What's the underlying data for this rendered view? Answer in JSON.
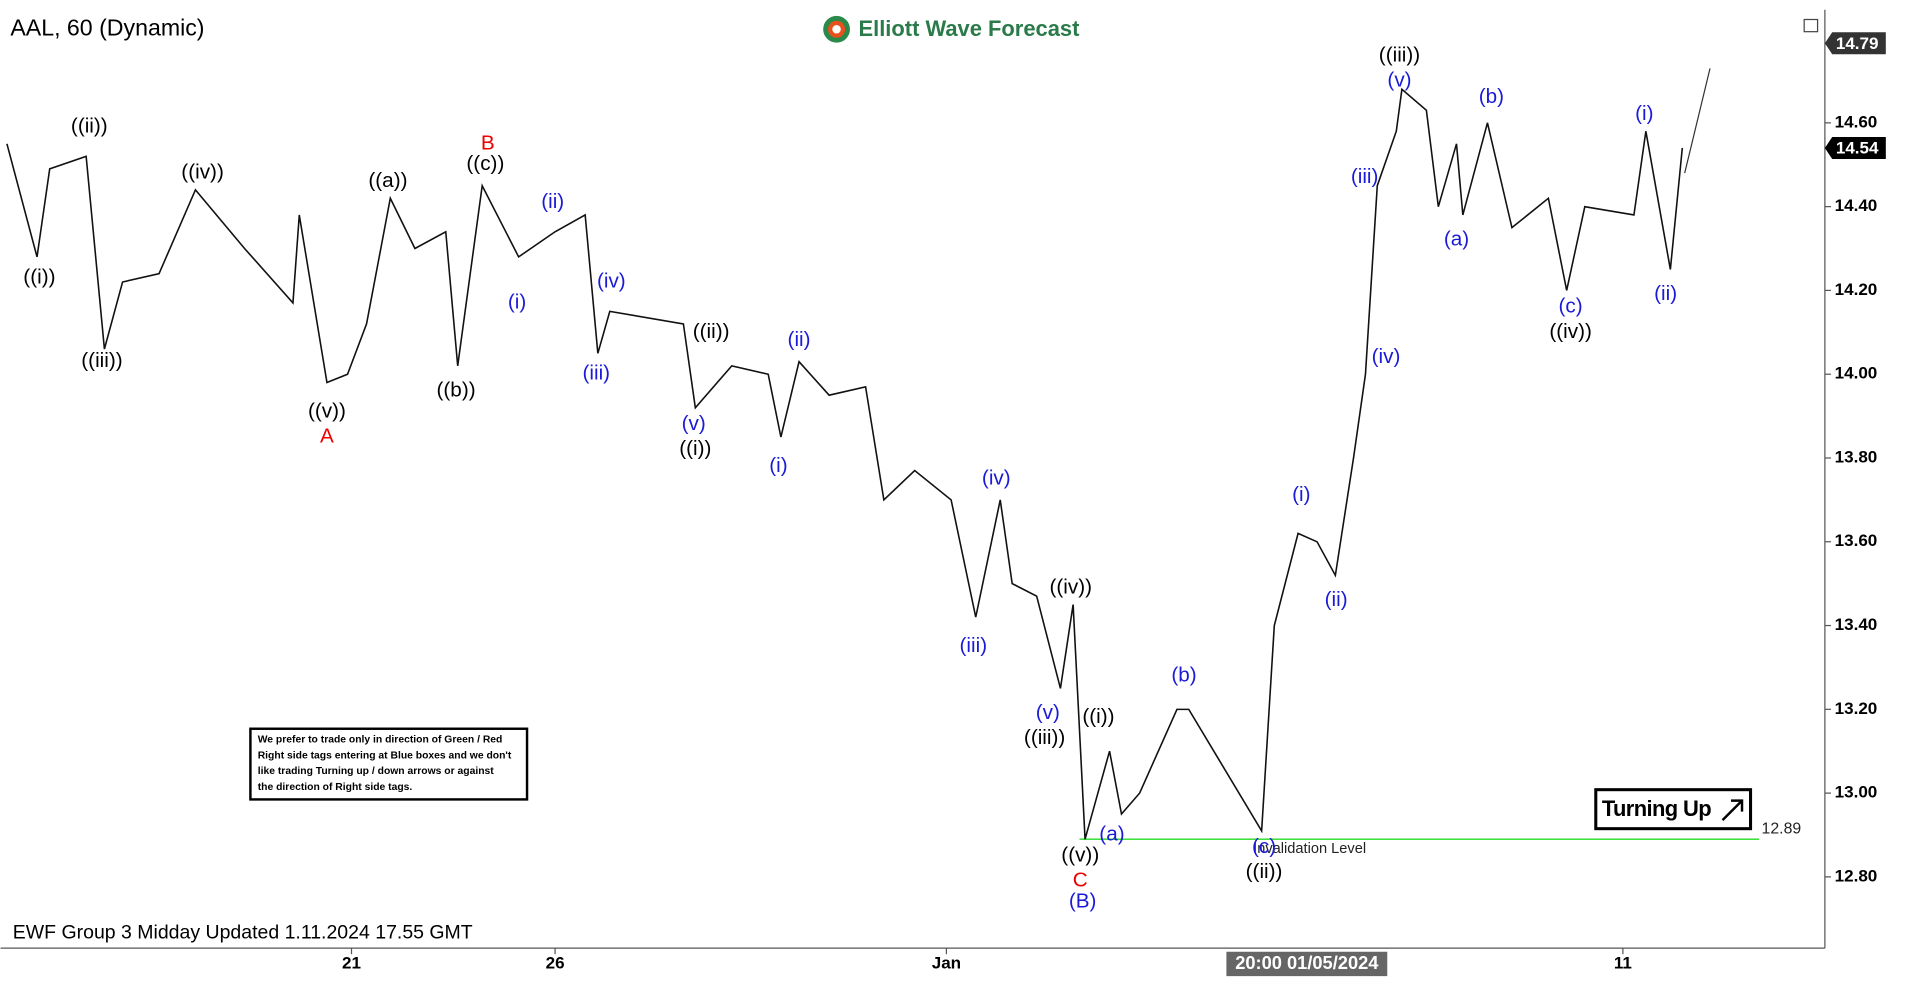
{
  "chart_data": {
    "type": "line",
    "title": "AAL, 60 (Dynamic)",
    "brand": "Elliott Wave Forecast",
    "footer": "EWF Group 3 Midday Updated 1.11.2024 17.55 GMT",
    "note": [
      "We prefer to trade only in direction of Green / Red",
      "Right side tags entering at Blue boxes and we don't",
      "like trading Turning up / down arrows or against",
      "the direction of Right side tags."
    ],
    "signal": "Turning Up",
    "color": "#111111",
    "x": [
      0.8,
      4.6,
      6.2,
      10.8,
      13.1,
      15.4,
      20,
      24.6,
      30.8,
      36.9,
      37.7,
      41.2,
      43.8,
      46.2,
      49.2,
      52.3,
      56.2,
      57.7,
      60.8,
      65.4,
      70,
      73.8,
      75.4,
      76.9,
      86.2,
      87.7,
      92.3,
      96.9,
      98.5,
      100.8,
      104.6,
      109.2,
      111.5,
      115.4,
      120,
      123.1,
      126.2,
      127.7,
      130.8,
      133.8,
      135.4,
      136.9,
      140,
      141.5,
      143.8,
      148.5,
      150,
      153.8,
      159.2,
      160.8,
      163.8,
      166.2,
      168.5,
      170.8,
      172.3,
      173.8,
      176.2,
      176.9,
      180,
      181.5,
      183.8,
      184.6,
      187.7,
      190.8,
      195.4,
      197.7,
      200,
      206.2,
      207.7,
      210.8,
      212.3
    ],
    "values": [
      14.55,
      14.28,
      14.49,
      14.52,
      14.06,
      14.22,
      14.24,
      14.44,
      14.3,
      14.17,
      14.38,
      13.98,
      14.0,
      14.12,
      14.42,
      14.3,
      14.34,
      14.02,
      14.45,
      14.28,
      14.34,
      14.38,
      14.05,
      14.15,
      14.12,
      13.92,
      14.02,
      14.0,
      13.85,
      14.03,
      13.95,
      13.97,
      13.7,
      13.77,
      13.7,
      13.42,
      13.7,
      13.5,
      13.47,
      13.25,
      13.45,
      12.89,
      13.1,
      12.95,
      13.0,
      13.2,
      13.2,
      13.08,
      12.91,
      13.4,
      13.62,
      13.6,
      13.52,
      13.8,
      14.0,
      14.45,
      14.58,
      14.68,
      14.63,
      14.4,
      14.55,
      14.38,
      14.6,
      14.35,
      14.42,
      14.2,
      14.4,
      14.38,
      14.58,
      14.25,
      14.54
    ],
    "projection": {
      "x": [
        212.6,
        215.8
      ],
      "values": [
        14.48,
        14.73
      ]
    },
    "xlim": [
      0,
      230.3
    ],
    "ylim": [
      12.63,
      14.87
    ],
    "xticks": [
      {
        "value": 44.3,
        "label": "21"
      },
      {
        "value": 70,
        "label": "26"
      },
      {
        "value": 119.4,
        "label": "Jan"
      },
      {
        "value": 204.8,
        "label": "11"
      }
    ],
    "crosshair_label": {
      "value": 164.9,
      "label": "20:00 01/05/2024"
    },
    "yticks": [
      {
        "value": 12.8,
        "label": "12.80"
      },
      {
        "value": 13.0,
        "label": "13.00"
      },
      {
        "value": 13.2,
        "label": "13.20"
      },
      {
        "value": 13.4,
        "label": "13.40"
      },
      {
        "value": 13.6,
        "label": "13.60"
      },
      {
        "value": 13.8,
        "label": "13.80"
      },
      {
        "value": 14.0,
        "label": "14.00"
      },
      {
        "value": 14.2,
        "label": "14.20"
      },
      {
        "value": 14.4,
        "label": "14.40"
      },
      {
        "value": 14.6,
        "label": "14.60"
      }
    ],
    "price_tags": [
      14.79,
      14.54
    ],
    "invalidation": {
      "value": 12.89,
      "label": "Invalidation Level",
      "x": [
        136.2,
        222
      ],
      "color": "#22dd22"
    },
    "annotations": [
      {
        "text": "((i))",
        "x": 4.9,
        "y": 14.23,
        "color": "#000000"
      },
      {
        "text": "((ii))",
        "x": 11.2,
        "y": 14.59,
        "color": "#000000"
      },
      {
        "text": "((iii))",
        "x": 12.8,
        "y": 14.03,
        "color": "#000000"
      },
      {
        "text": "((iv))",
        "x": 25.5,
        "y": 14.48,
        "color": "#000000"
      },
      {
        "text": "((v))",
        "x": 41.2,
        "y": 13.91,
        "color": "#000000"
      },
      {
        "text": "A",
        "x": 41.2,
        "y": 13.85,
        "color": "#ee0000"
      },
      {
        "text": "((a))",
        "x": 48.9,
        "y": 14.46,
        "color": "#000000"
      },
      {
        "text": "((b))",
        "x": 57.5,
        "y": 13.96,
        "color": "#000000"
      },
      {
        "text": "B",
        "x": 61.5,
        "y": 14.55,
        "color": "#ee0000"
      },
      {
        "text": "((c))",
        "x": 61.2,
        "y": 14.5,
        "color": "#000000"
      },
      {
        "text": "(i)",
        "x": 65.2,
        "y": 14.17,
        "color": "#1a1ad8"
      },
      {
        "text": "(ii)",
        "x": 69.7,
        "y": 14.41,
        "color": "#1a1ad8"
      },
      {
        "text": "(iv)",
        "x": 77.1,
        "y": 14.22,
        "color": "#1a1ad8"
      },
      {
        "text": "(iii)",
        "x": 75.2,
        "y": 14.0,
        "color": "#1a1ad8"
      },
      {
        "text": "((ii))",
        "x": 89.7,
        "y": 14.1,
        "color": "#000000"
      },
      {
        "text": "(v)",
        "x": 87.5,
        "y": 13.88,
        "color": "#1a1ad8"
      },
      {
        "text": "((i))",
        "x": 87.7,
        "y": 13.82,
        "color": "#000000"
      },
      {
        "text": "(ii)",
        "x": 100.8,
        "y": 14.08,
        "color": "#1a1ad8"
      },
      {
        "text": "(i)",
        "x": 98.2,
        "y": 13.78,
        "color": "#1a1ad8"
      },
      {
        "text": "(iv)",
        "x": 125.7,
        "y": 13.75,
        "color": "#1a1ad8"
      },
      {
        "text": "(iii)",
        "x": 122.8,
        "y": 13.35,
        "color": "#1a1ad8"
      },
      {
        "text": "((iv))",
        "x": 135.1,
        "y": 13.49,
        "color": "#000000"
      },
      {
        "text": "(v)",
        "x": 132.2,
        "y": 13.19,
        "color": "#1a1ad8"
      },
      {
        "text": "((iii))",
        "x": 131.8,
        "y": 13.13,
        "color": "#000000"
      },
      {
        "text": "((i))",
        "x": 138.6,
        "y": 13.18,
        "color": "#000000"
      },
      {
        "text": "(a)",
        "x": 140.3,
        "y": 12.9,
        "color": "#1a1ad8"
      },
      {
        "text": "((v))",
        "x": 136.3,
        "y": 12.85,
        "color": "#000000"
      },
      {
        "text": "C",
        "x": 136.3,
        "y": 12.79,
        "color": "#ee0000"
      },
      {
        "text": "(B)",
        "x": 136.6,
        "y": 12.74,
        "color": "#1a1ad8"
      },
      {
        "text": "(b)",
        "x": 149.4,
        "y": 13.28,
        "color": "#1a1ad8"
      },
      {
        "text": "(c)",
        "x": 159.5,
        "y": 12.87,
        "color": "#1a1ad8"
      },
      {
        "text": "((ii))",
        "x": 159.5,
        "y": 12.81,
        "color": "#000000"
      },
      {
        "text": "(i)",
        "x": 164.2,
        "y": 13.71,
        "color": "#1a1ad8"
      },
      {
        "text": "(ii)",
        "x": 168.6,
        "y": 13.46,
        "color": "#1a1ad8"
      },
      {
        "text": "(iv)",
        "x": 174.9,
        "y": 14.04,
        "color": "#1a1ad8"
      },
      {
        "text": "(iii)",
        "x": 172.2,
        "y": 14.47,
        "color": "#1a1ad8"
      },
      {
        "text": "(v)",
        "x": 176.6,
        "y": 14.7,
        "color": "#1a1ad8"
      },
      {
        "text": "((iii))",
        "x": 176.6,
        "y": 14.76,
        "color": "#000000"
      },
      {
        "text": "(b)",
        "x": 188.2,
        "y": 14.66,
        "color": "#1a1ad8"
      },
      {
        "text": "(a)",
        "x": 183.8,
        "y": 14.32,
        "color": "#1a1ad8"
      },
      {
        "text": "(c)",
        "x": 198.2,
        "y": 14.16,
        "color": "#1a1ad8"
      },
      {
        "text": "((iv))",
        "x": 198.2,
        "y": 14.1,
        "color": "#000000"
      },
      {
        "text": "(i)",
        "x": 207.5,
        "y": 14.62,
        "color": "#1a1ad8"
      },
      {
        "text": "(ii)",
        "x": 210.2,
        "y": 14.19,
        "color": "#1a1ad8"
      }
    ]
  }
}
